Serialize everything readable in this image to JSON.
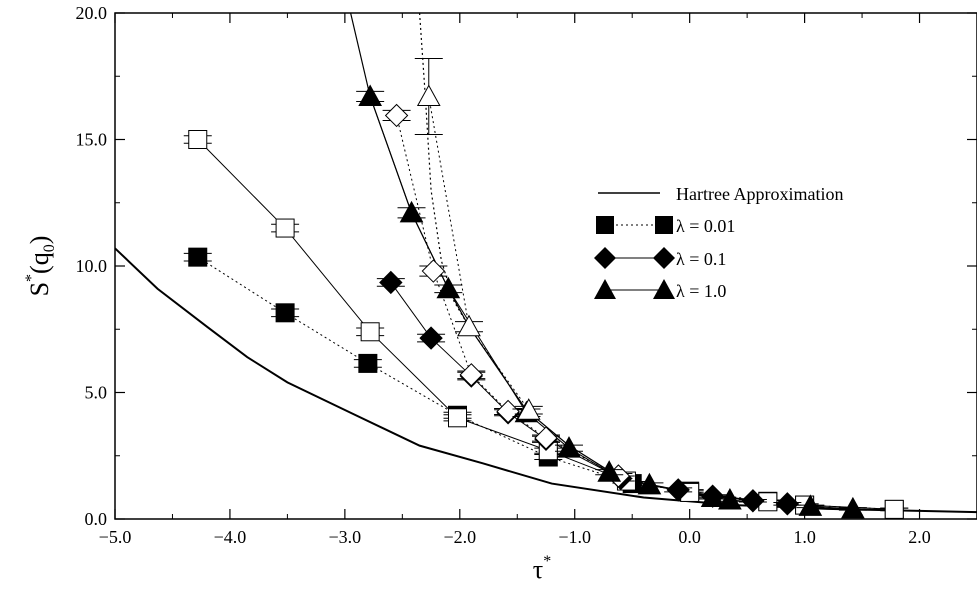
{
  "chart_data": {
    "type": "scatter",
    "xlim": [
      -5.0,
      2.5
    ],
    "ylim": [
      0.0,
      20.0
    ],
    "xticks": [
      -5.0,
      -4.0,
      -3.0,
      -2.0,
      -1.0,
      0.0,
      1.0,
      2.0
    ],
    "yticks": [
      0.0,
      5.0,
      10.0,
      15.0,
      20.0
    ],
    "xtick_labels": [
      "−5.0",
      "−4.0",
      "−3.0",
      "−2.0",
      "−1.0",
      "0.0",
      "1.0",
      "2.0"
    ],
    "ytick_labels": [
      "0.0",
      "5.0",
      "10.0",
      "15.0",
      "20.0"
    ],
    "xlabel": {
      "main": "τ",
      "sup": "*"
    },
    "ylabel": {
      "main": "S",
      "sup": "*",
      "open": "(q",
      "sub": "0",
      "close": ")"
    },
    "grid": false,
    "legend_position": "right",
    "legend": [
      {
        "label": "Hartree Approximation",
        "marker": "none",
        "line": "solid"
      },
      {
        "label": "λ = 0.01",
        "marker": "square",
        "line": "dotted"
      },
      {
        "label": "λ = 0.1",
        "marker": "diamond",
        "line": "solid"
      },
      {
        "label": "λ = 1.0",
        "marker": "triangle",
        "line": "solid"
      }
    ],
    "series": [
      {
        "name": "Hartree Approximation",
        "marker": "none",
        "line": "solid",
        "line_width": 2,
        "points": [
          [
            -5.0,
            10.7
          ],
          [
            -4.63,
            9.1
          ],
          [
            -4.2,
            7.6
          ],
          [
            -3.85,
            6.4
          ],
          [
            -3.5,
            5.4
          ],
          [
            -2.95,
            4.2
          ],
          [
            -2.35,
            2.9
          ],
          [
            -1.8,
            2.2
          ],
          [
            -1.2,
            1.4
          ],
          [
            -0.4,
            0.85
          ],
          [
            0.4,
            0.55
          ],
          [
            1.2,
            0.4
          ],
          [
            2.0,
            0.32
          ],
          [
            2.5,
            0.27
          ]
        ]
      },
      {
        "name": "λ = 0.01",
        "marker": "square",
        "fill": "filled",
        "line": "dotted",
        "points": [
          [
            -4.28,
            10.35,
            0.15
          ],
          [
            -3.52,
            8.15,
            0.15
          ],
          [
            -2.8,
            6.15,
            0.15
          ],
          [
            -2.02,
            4.1,
            0.12
          ],
          [
            -1.23,
            2.45,
            0.1
          ],
          [
            -0.5,
            1.4,
            0.08
          ],
          [
            0.0,
            1.1,
            0.06
          ],
          [
            0.68,
            0.7,
            0.05
          ],
          [
            1.0,
            0.55,
            0.05
          ],
          [
            1.78,
            0.38,
            0.05
          ]
        ]
      },
      {
        "name": "λ = 0.01 (open)",
        "marker": "square",
        "fill": "open",
        "line": "solid",
        "points": [
          [
            -4.28,
            15.0,
            0.15
          ],
          [
            -3.52,
            11.5,
            0.15
          ],
          [
            -2.78,
            7.4,
            0.15
          ],
          [
            -2.02,
            4.0,
            0.12
          ],
          [
            -1.23,
            2.7,
            0.1
          ],
          [
            -0.55,
            1.5,
            0.08
          ],
          [
            0.0,
            1.05,
            0.06
          ],
          [
            0.68,
            0.68,
            0.05
          ],
          [
            1.0,
            0.55,
            0.05
          ],
          [
            1.78,
            0.38,
            0.05
          ]
        ]
      },
      {
        "name": "λ = 0.1",
        "marker": "diamond",
        "fill": "filled",
        "line": "solid",
        "points": [
          [
            -2.6,
            9.35,
            0.15
          ],
          [
            -2.25,
            7.15,
            0.15
          ],
          [
            -1.9,
            5.65,
            0.15
          ],
          [
            -1.58,
            4.2,
            0.12
          ],
          [
            -1.25,
            3.15,
            0.12
          ],
          [
            -0.6,
            1.6,
            0.1
          ],
          [
            -0.1,
            1.15,
            0.08
          ],
          [
            0.2,
            0.9,
            0.06
          ],
          [
            0.55,
            0.72,
            0.05
          ],
          [
            0.85,
            0.6,
            0.05
          ]
        ]
      },
      {
        "name": "λ = 0.1 (open)",
        "marker": "diamond",
        "fill": "open",
        "line": "dotted",
        "points": [
          [
            -2.55,
            15.95,
            0.2
          ],
          [
            -2.23,
            9.8,
            0.2
          ],
          [
            -1.9,
            5.7,
            0.15
          ],
          [
            -1.58,
            4.25,
            0.12
          ],
          [
            -1.25,
            3.2,
            0.12
          ],
          [
            -0.62,
            1.7,
            0.1
          ]
        ]
      },
      {
        "name": "λ = 1.0",
        "marker": "triangle",
        "fill": "filled",
        "line": "solid",
        "points": [
          [
            -2.78,
            16.7,
            0.2
          ],
          [
            -2.42,
            12.1,
            0.2
          ],
          [
            -2.1,
            9.1,
            0.15
          ],
          [
            -1.42,
            4.2,
            0.15
          ],
          [
            -1.05,
            2.8,
            0.12
          ],
          [
            -0.7,
            1.85,
            0.1
          ],
          [
            -0.35,
            1.35,
            0.08
          ],
          [
            0.2,
            0.85,
            0.06
          ],
          [
            0.35,
            0.75,
            0.05
          ],
          [
            1.05,
            0.5,
            0.05
          ],
          [
            1.42,
            0.4,
            0.05
          ]
        ]
      },
      {
        "name": "λ = 1.0 (open)",
        "marker": "triangle",
        "fill": "open",
        "line": "dotted",
        "points": [
          [
            -2.27,
            16.7,
            1.5
          ],
          [
            -1.92,
            7.6,
            0.2
          ],
          [
            -1.4,
            4.3,
            0.15
          ]
        ]
      }
    ],
    "extra_curves": [
      {
        "line": "solid",
        "line_width": 1.2,
        "points": [
          [
            -2.95,
            20.0
          ],
          [
            -2.78,
            16.7
          ],
          [
            -2.42,
            12.1
          ],
          [
            -2.1,
            9.1
          ]
        ]
      },
      {
        "line": "solid",
        "line_width": 1.2,
        "points": [
          [
            -2.1,
            9.1
          ],
          [
            -1.92,
            7.6
          ],
          [
            -1.42,
            4.3
          ],
          [
            -1.05,
            2.9
          ],
          [
            -0.7,
            1.9
          ]
        ]
      },
      {
        "line": "dotted",
        "line_width": 1.2,
        "points": [
          [
            -2.35,
            20.0
          ],
          [
            -2.3,
            16.7
          ],
          [
            -2.25,
            13.0
          ],
          [
            -2.16,
            10.2
          ],
          [
            -2.05,
            8.6
          ],
          [
            -1.92,
            7.6
          ]
        ]
      }
    ]
  }
}
